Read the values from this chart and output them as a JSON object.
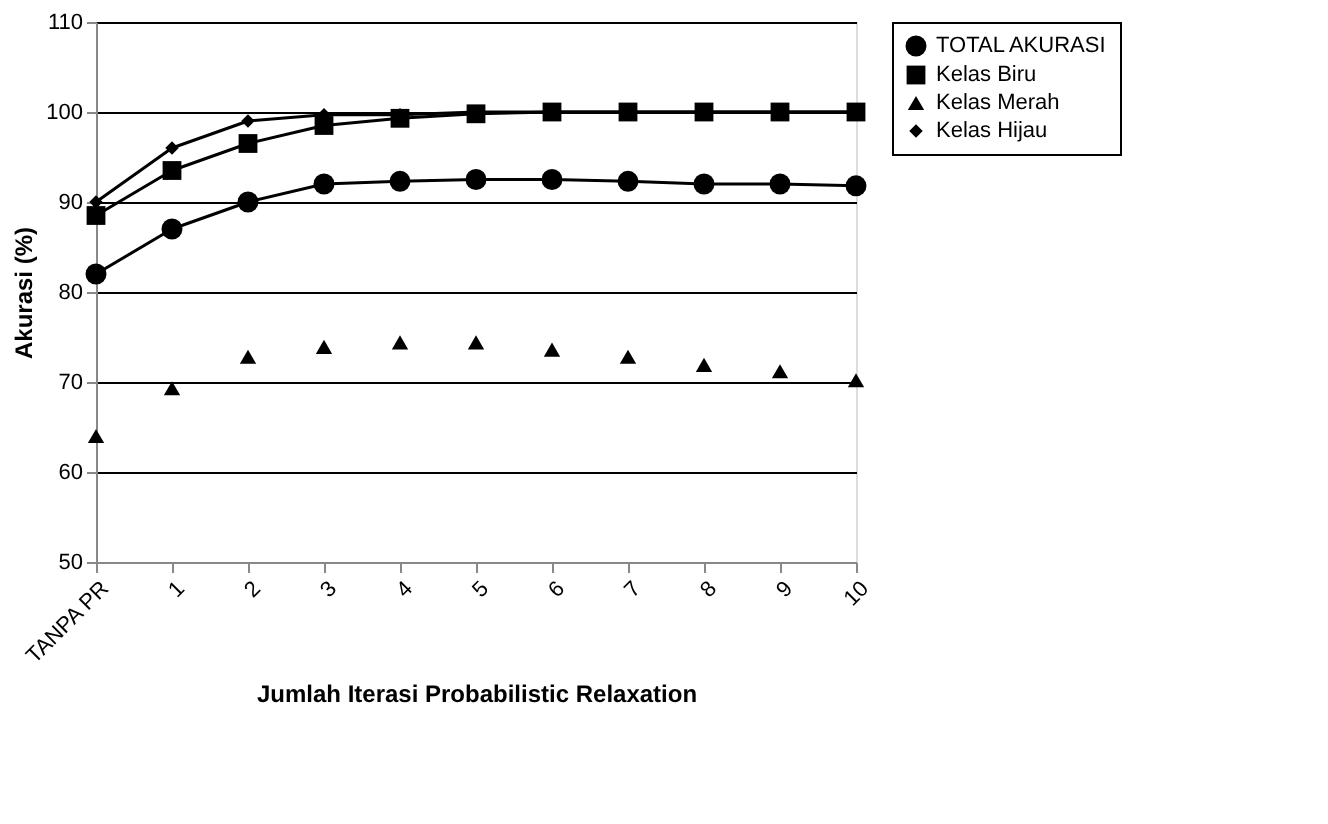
{
  "chart_data": {
    "type": "line",
    "categories": [
      "TANPA PR",
      "1",
      "2",
      "3",
      "4",
      "5",
      "6",
      "7",
      "8",
      "9",
      "10"
    ],
    "xlabel": "Jumlah Iterasi Probabilistic Relaxation",
    "ylabel": "Akurasi (%)",
    "ylim": [
      50,
      110
    ],
    "yticks": [
      50,
      60,
      70,
      80,
      90,
      100,
      110
    ],
    "grid": "y",
    "legend": "right",
    "series": [
      {
        "name": "TOTAL AKURASI",
        "color": "#000000",
        "marker": "circle",
        "values": [
          82,
          87,
          90,
          92,
          92.3,
          92.5,
          92.5,
          92.3,
          92,
          92,
          91.8
        ]
      },
      {
        "name": "Kelas Biru",
        "color": "#000000",
        "marker": "square",
        "values": [
          88.5,
          93.5,
          96.5,
          98.5,
          99.3,
          99.8,
          100,
          100,
          100,
          100,
          100
        ]
      },
      {
        "name": "Kelas Merah",
        "color": "#000000",
        "type": "scatter",
        "marker": "triangle",
        "values": [
          64,
          69.3,
          72.8,
          73.9,
          74.4,
          74.4,
          73.6,
          72.8,
          71.9,
          71.2,
          70.2
        ]
      },
      {
        "name": "Kelas Hijau",
        "color": "#000000",
        "marker": "diamond",
        "values": [
          90,
          96,
          99,
          99.7,
          99.7,
          100,
          100,
          100,
          100,
          100,
          100
        ]
      }
    ]
  }
}
